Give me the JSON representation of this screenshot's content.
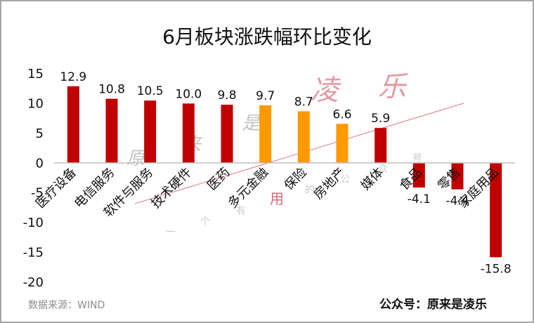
{
  "chart_data": {
    "type": "bar",
    "title": "6月板块涨跌幅环比变化",
    "categories": [
      "医疗设备",
      "电信服务",
      "软件与服务",
      "技术硬件",
      "医药",
      "多元金融",
      "保险",
      "房地产",
      "媒体",
      "食品",
      "零售",
      "家庭用品"
    ],
    "values": [
      12.9,
      10.8,
      10.5,
      10.0,
      9.8,
      9.7,
      8.7,
      6.6,
      5.9,
      -4.1,
      -4.4,
      -15.8
    ],
    "value_labels": [
      "12.9",
      "10.8",
      "10.5",
      "10.0",
      "9.8",
      "9.7",
      "8.7",
      "6.6",
      "5.9",
      "-4.1",
      "-4.4",
      "-15.8"
    ],
    "bar_colors": [
      "#c00000",
      "#c00000",
      "#c00000",
      "#c00000",
      "#c00000",
      "#ff9900",
      "#ff9900",
      "#ff9900",
      "#c00000",
      "#c00000",
      "#c00000",
      "#c00000"
    ],
    "ylim": [
      -20,
      15
    ],
    "yticks": [
      15,
      10,
      5,
      0,
      -5,
      -10,
      -15,
      -20
    ],
    "xlabel": "",
    "ylabel": "",
    "grid": false,
    "legend": "none"
  },
  "footer": {
    "source": "数据来源：WIND",
    "account": "公众号：原来是凌乐"
  },
  "watermark": {
    "chars_big": [
      "凌",
      "乐"
    ],
    "chars_small": [
      "原",
      "来",
      "是"
    ],
    "chars_tiny": [
      "一",
      "个",
      "有",
      "用",
      "的",
      "公",
      "众",
      "号"
    ]
  },
  "colors": {
    "red_bar": "#c00000",
    "orange_bar": "#ff9900",
    "frame": "#a6a6a6",
    "watermark_line": "#e07a88"
  }
}
